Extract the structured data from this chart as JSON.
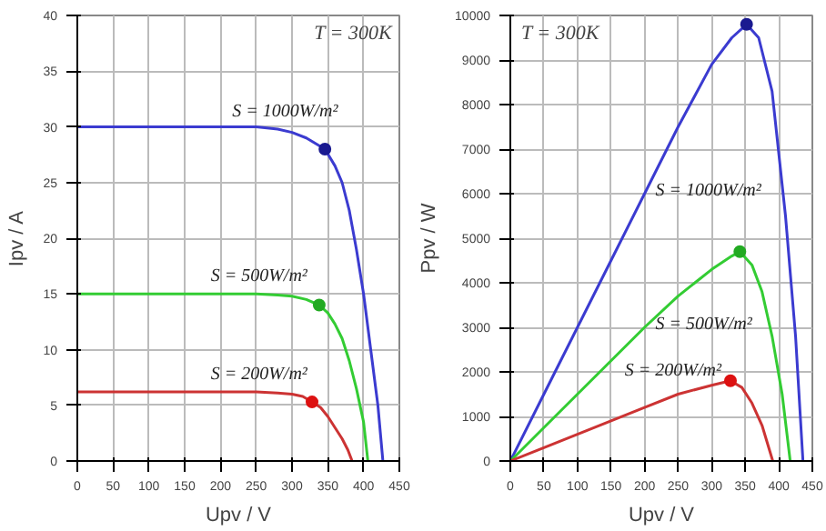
{
  "chart_data": [
    {
      "type": "line",
      "xlabel": "Upv / V",
      "ylabel": "Ipv / A",
      "xlim": [
        0,
        450
      ],
      "ylim": [
        0,
        40
      ],
      "xticks": [
        0,
        50,
        100,
        150,
        200,
        250,
        300,
        350,
        400,
        450
      ],
      "yticks": [
        0,
        5,
        10,
        15,
        20,
        25,
        30,
        35,
        40
      ],
      "grid": true,
      "annotations": [
        "T = 300K"
      ],
      "series": [
        {
          "name": "S = 1000W/m²",
          "color": "#3b3bd0",
          "x": [
            0,
            50,
            100,
            150,
            200,
            250,
            280,
            300,
            320,
            346,
            360,
            370,
            380,
            390,
            400,
            410,
            420,
            427
          ],
          "values": [
            30,
            30,
            30,
            30,
            30,
            30,
            29.8,
            29.5,
            29,
            28,
            26.5,
            25,
            22.5,
            19,
            15,
            10,
            5,
            0
          ]
        },
        {
          "name": "S = 500W/m²",
          "color": "#33cc33",
          "x": [
            0,
            50,
            100,
            150,
            200,
            250,
            280,
            300,
            320,
            338,
            350,
            360,
            370,
            380,
            390,
            400,
            406
          ],
          "values": [
            15,
            15,
            15,
            15,
            15,
            15,
            14.9,
            14.8,
            14.5,
            14,
            13.3,
            12.3,
            11,
            9,
            6.5,
            3.5,
            0
          ]
        },
        {
          "name": "S = 200W/m²",
          "color": "#cc3333",
          "x": [
            0,
            50,
            100,
            150,
            200,
            250,
            280,
            300,
            315,
            328,
            340,
            350,
            360,
            370,
            378,
            384
          ],
          "values": [
            6.2,
            6.2,
            6.2,
            6.2,
            6.2,
            6.2,
            6.1,
            6,
            5.8,
            5.3,
            4.8,
            4,
            3,
            2,
            1,
            0
          ]
        },
        {
          "type": "scatter",
          "marker": "circle",
          "color": "#1a1a90",
          "x": [
            346
          ],
          "values": [
            28
          ]
        },
        {
          "type": "scatter",
          "marker": "circle",
          "color": "#22aa22",
          "x": [
            338
          ],
          "values": [
            14
          ]
        },
        {
          "type": "scatter",
          "marker": "circle",
          "color": "#dd1111",
          "x": [
            328
          ],
          "values": [
            5.3
          ]
        }
      ]
    },
    {
      "type": "line",
      "xlabel": "Upv / V",
      "ylabel": "Ppv / W",
      "xlim": [
        0,
        450
      ],
      "ylim": [
        0,
        10000
      ],
      "xticks": [
        0,
        50,
        100,
        150,
        200,
        250,
        300,
        350,
        400,
        450
      ],
      "yticks": [
        0,
        1000,
        2000,
        3000,
        4000,
        5000,
        6000,
        7000,
        8000,
        9000,
        10000
      ],
      "grid": true,
      "annotations": [
        "T = 300K"
      ],
      "series": [
        {
          "name": "S = 1000W/m²",
          "color": "#3b3bd0",
          "x": [
            0,
            50,
            100,
            150,
            200,
            250,
            300,
            330,
            352,
            370,
            390,
            410,
            425,
            436
          ],
          "values": [
            0,
            1500,
            3000,
            4500,
            6000,
            7500,
            8900,
            9500,
            9800,
            9500,
            8300,
            5500,
            2800,
            0
          ]
        },
        {
          "name": "S = 500W/m²",
          "color": "#33cc33",
          "x": [
            0,
            50,
            100,
            150,
            200,
            250,
            300,
            330,
            342,
            360,
            375,
            390,
            405,
            417
          ],
          "values": [
            0,
            750,
            1500,
            2250,
            3000,
            3700,
            4300,
            4600,
            4700,
            4400,
            3800,
            2800,
            1500,
            0
          ]
        },
        {
          "name": "S = 200W/m²",
          "color": "#cc3333",
          "x": [
            0,
            50,
            100,
            150,
            200,
            250,
            300,
            328,
            345,
            360,
            375,
            391
          ],
          "values": [
            0,
            300,
            600,
            900,
            1200,
            1500,
            1700,
            1800,
            1650,
            1300,
            800,
            0
          ]
        },
        {
          "type": "scatter",
          "marker": "circle",
          "color": "#1a1a90",
          "x": [
            352
          ],
          "values": [
            9800
          ]
        },
        {
          "type": "scatter",
          "marker": "circle",
          "color": "#22aa22",
          "x": [
            342
          ],
          "values": [
            4700
          ]
        },
        {
          "type": "scatter",
          "marker": "circle",
          "color": "#dd1111",
          "x": [
            328
          ],
          "values": [
            1800
          ]
        }
      ]
    }
  ]
}
